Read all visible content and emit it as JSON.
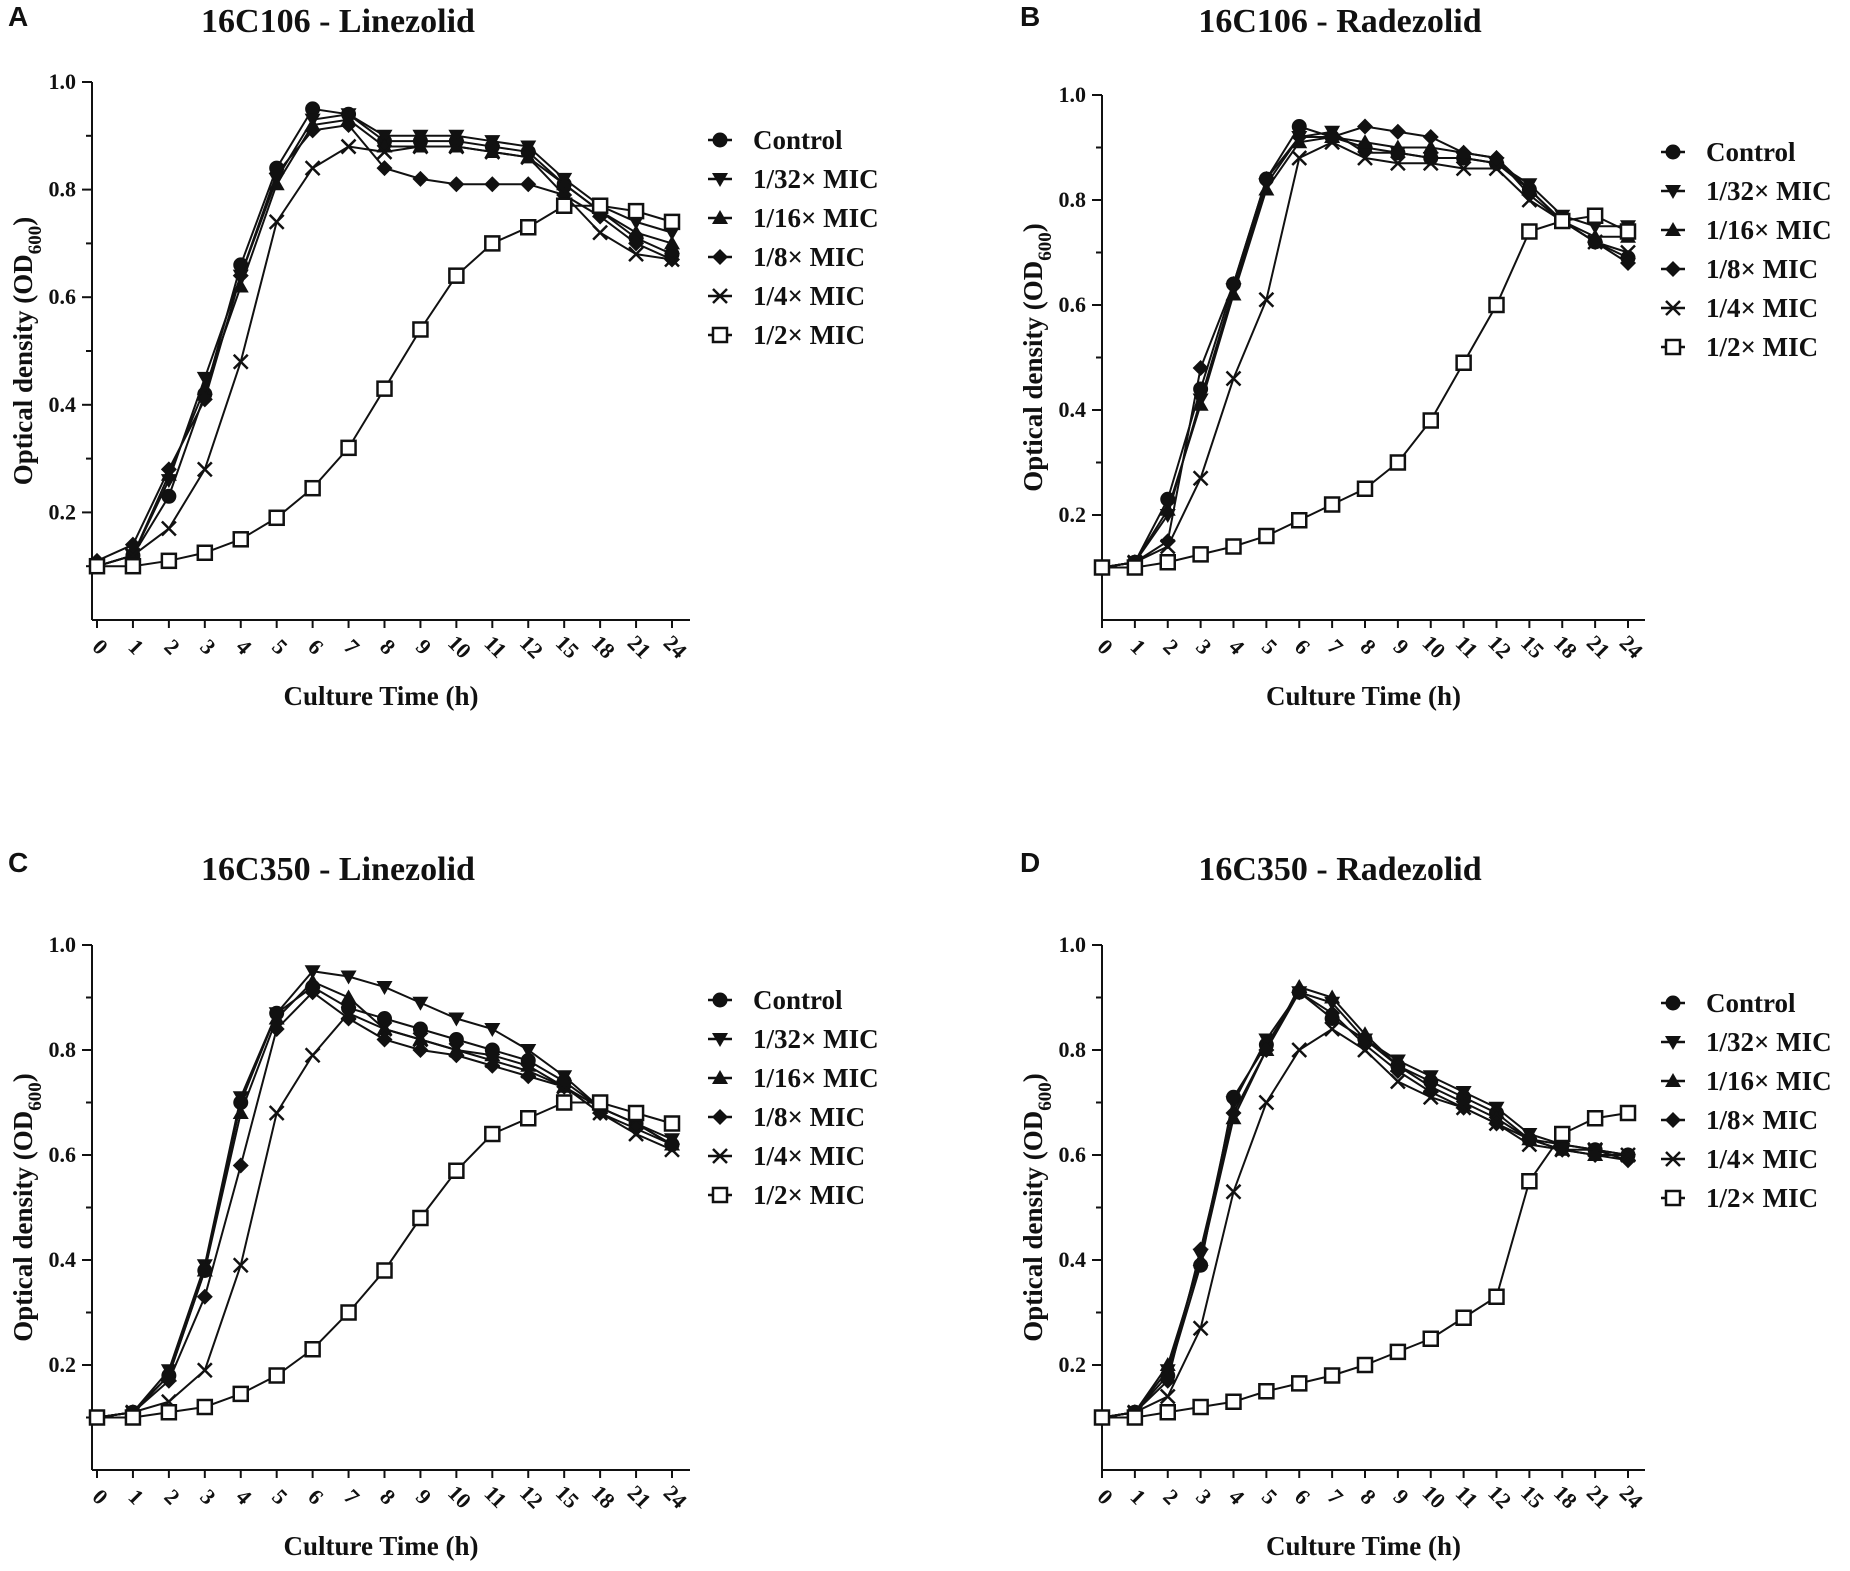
{
  "chart_data": [
    {
      "panel": "A",
      "type": "line",
      "title": "16C106 - Linezolid",
      "xlabel": "Culture Time (h)",
      "ylabel": "Optical density (OD",
      "ylabel_sub": "600",
      "ylabel_close": ")",
      "categories": [
        "0",
        "1",
        "2",
        "3",
        "4",
        "5",
        "6",
        "7",
        "8",
        "9",
        "10",
        "11",
        "12",
        "15",
        "18",
        "21",
        "24"
      ],
      "yticks": [
        "0.2",
        "0.4",
        "0.6",
        "0.8",
        "1.0"
      ],
      "ylim": [
        0,
        1.0
      ],
      "series": [
        {
          "name": "Control",
          "marker": "circle",
          "values": [
            0.1,
            0.12,
            0.23,
            0.42,
            0.66,
            0.84,
            0.95,
            0.94,
            0.89,
            0.89,
            0.89,
            0.88,
            0.87,
            0.81,
            0.76,
            0.71,
            0.68
          ]
        },
        {
          "name": "1/32× MIC",
          "marker": "triangle-down",
          "values": [
            0.1,
            0.12,
            0.26,
            0.45,
            0.64,
            0.82,
            0.93,
            0.94,
            0.9,
            0.9,
            0.9,
            0.89,
            0.88,
            0.82,
            0.77,
            0.74,
            0.72
          ]
        },
        {
          "name": "1/16× MIC",
          "marker": "triangle-up",
          "values": [
            0.1,
            0.12,
            0.27,
            0.43,
            0.62,
            0.81,
            0.92,
            0.93,
            0.88,
            0.88,
            0.88,
            0.87,
            0.86,
            0.81,
            0.76,
            0.72,
            0.7
          ]
        },
        {
          "name": "1/8× MIC",
          "marker": "diamond",
          "values": [
            0.11,
            0.14,
            0.28,
            0.41,
            0.64,
            0.83,
            0.91,
            0.92,
            0.84,
            0.82,
            0.81,
            0.81,
            0.81,
            0.79,
            0.75,
            0.7,
            0.67
          ]
        },
        {
          "name": "1/4× MIC",
          "marker": "x",
          "values": [
            0.1,
            0.12,
            0.17,
            0.28,
            0.48,
            0.74,
            0.84,
            0.88,
            0.87,
            0.88,
            0.88,
            0.87,
            0.86,
            0.79,
            0.72,
            0.68,
            0.67
          ]
        },
        {
          "name": "1/2× MIC",
          "marker": "square-open",
          "values": [
            0.1,
            0.1,
            0.11,
            0.125,
            0.15,
            0.19,
            0.245,
            0.32,
            0.43,
            0.54,
            0.64,
            0.7,
            0.73,
            0.77,
            0.77,
            0.76,
            0.74
          ]
        }
      ]
    },
    {
      "panel": "B",
      "type": "line",
      "title": "16C106 - Radezolid",
      "xlabel": "Culture Time (h)",
      "ylabel": "Optical density (OD",
      "ylabel_sub": "600",
      "ylabel_close": ")",
      "categories": [
        "0",
        "1",
        "2",
        "3",
        "4",
        "5",
        "6",
        "7",
        "8",
        "9",
        "10",
        "11",
        "12",
        "15",
        "18",
        "21",
        "24"
      ],
      "yticks": [
        "0.2",
        "0.4",
        "0.6",
        "0.8",
        "1.0"
      ],
      "ylim": [
        0,
        1.0
      ],
      "series": [
        {
          "name": "Control",
          "marker": "circle",
          "values": [
            0.1,
            0.11,
            0.23,
            0.44,
            0.64,
            0.84,
            0.94,
            0.92,
            0.9,
            0.89,
            0.88,
            0.88,
            0.87,
            0.82,
            0.76,
            0.72,
            0.69
          ]
        },
        {
          "name": "1/32× MIC",
          "marker": "triangle-down",
          "values": [
            0.1,
            0.11,
            0.2,
            0.42,
            0.63,
            0.83,
            0.92,
            0.93,
            0.89,
            0.89,
            0.88,
            0.88,
            0.87,
            0.83,
            0.77,
            0.75,
            0.75
          ]
        },
        {
          "name": "1/16× MIC",
          "marker": "triangle-up",
          "values": [
            0.1,
            0.11,
            0.21,
            0.41,
            0.62,
            0.82,
            0.91,
            0.92,
            0.91,
            0.9,
            0.9,
            0.89,
            0.88,
            0.82,
            0.76,
            0.73,
            0.73
          ]
        },
        {
          "name": "1/8× MIC",
          "marker": "diamond",
          "values": [
            0.1,
            0.11,
            0.15,
            0.48,
            0.64,
            0.84,
            0.92,
            0.92,
            0.94,
            0.93,
            0.92,
            0.89,
            0.88,
            0.81,
            0.76,
            0.72,
            0.68
          ]
        },
        {
          "name": "1/4× MIC",
          "marker": "x",
          "values": [
            0.1,
            0.11,
            0.14,
            0.27,
            0.46,
            0.61,
            0.88,
            0.91,
            0.88,
            0.87,
            0.87,
            0.86,
            0.86,
            0.8,
            0.76,
            0.72,
            0.7
          ]
        },
        {
          "name": "1/2× MIC",
          "marker": "square-open",
          "values": [
            0.1,
            0.1,
            0.11,
            0.125,
            0.14,
            0.16,
            0.19,
            0.22,
            0.25,
            0.3,
            0.38,
            0.49,
            0.6,
            0.74,
            0.76,
            0.77,
            0.74
          ]
        }
      ]
    },
    {
      "panel": "C",
      "type": "line",
      "title": "16C350 - Linezolid",
      "xlabel": "Culture Time (h)",
      "ylabel": "Optical density (OD",
      "ylabel_sub": "600",
      "ylabel_close": ")",
      "categories": [
        "0",
        "1",
        "2",
        "3",
        "4",
        "5",
        "6",
        "7",
        "8",
        "9",
        "10",
        "11",
        "12",
        "15",
        "18",
        "21",
        "24"
      ],
      "yticks": [
        "0.2",
        "0.4",
        "0.6",
        "0.8",
        "1.0"
      ],
      "ylim": [
        0,
        1.0
      ],
      "series": [
        {
          "name": "Control",
          "marker": "circle",
          "values": [
            0.1,
            0.11,
            0.18,
            0.38,
            0.7,
            0.87,
            0.92,
            0.88,
            0.86,
            0.84,
            0.82,
            0.8,
            0.78,
            0.74,
            0.69,
            0.66,
            0.62
          ]
        },
        {
          "name": "1/32× MIC",
          "marker": "triangle-down",
          "values": [
            0.1,
            0.11,
            0.19,
            0.39,
            0.71,
            0.87,
            0.95,
            0.94,
            0.92,
            0.89,
            0.86,
            0.84,
            0.8,
            0.75,
            0.69,
            0.66,
            0.63
          ]
        },
        {
          "name": "1/16× MIC",
          "marker": "triangle-up",
          "values": [
            0.1,
            0.11,
            0.18,
            0.38,
            0.68,
            0.86,
            0.93,
            0.9,
            0.84,
            0.82,
            0.8,
            0.79,
            0.77,
            0.73,
            0.69,
            0.66,
            0.62
          ]
        },
        {
          "name": "1/8× MIC",
          "marker": "diamond",
          "values": [
            0.1,
            0.11,
            0.17,
            0.33,
            0.58,
            0.84,
            0.91,
            0.86,
            0.82,
            0.8,
            0.79,
            0.77,
            0.75,
            0.73,
            0.68,
            0.65,
            0.62
          ]
        },
        {
          "name": "1/4× MIC",
          "marker": "x",
          "values": [
            0.1,
            0.11,
            0.13,
            0.19,
            0.39,
            0.68,
            0.79,
            0.87,
            0.84,
            0.82,
            0.8,
            0.78,
            0.76,
            0.73,
            0.68,
            0.64,
            0.61
          ]
        },
        {
          "name": "1/2× MIC",
          "marker": "square-open",
          "values": [
            0.1,
            0.1,
            0.11,
            0.12,
            0.145,
            0.18,
            0.23,
            0.3,
            0.38,
            0.48,
            0.57,
            0.64,
            0.67,
            0.7,
            0.7,
            0.68,
            0.66
          ]
        }
      ]
    },
    {
      "panel": "D",
      "type": "line",
      "title": "16C350 - Radezolid",
      "xlabel": "Culture Time (h)",
      "ylabel": "Optical density (OD",
      "ylabel_sub": "600",
      "ylabel_close": ")",
      "categories": [
        "0",
        "1",
        "2",
        "3",
        "4",
        "5",
        "6",
        "7",
        "8",
        "9",
        "10",
        "11",
        "12",
        "15",
        "18",
        "21",
        "24"
      ],
      "yticks": [
        "0.2",
        "0.4",
        "0.6",
        "0.8",
        "1.0"
      ],
      "ylim": [
        0,
        1.0
      ],
      "series": [
        {
          "name": "Control",
          "marker": "circle",
          "values": [
            0.1,
            0.11,
            0.18,
            0.39,
            0.71,
            0.81,
            0.91,
            0.86,
            0.82,
            0.77,
            0.74,
            0.71,
            0.68,
            0.63,
            0.62,
            0.61,
            0.6
          ]
        },
        {
          "name": "1/32× MIC",
          "marker": "triangle-down",
          "values": [
            0.1,
            0.11,
            0.19,
            0.41,
            0.7,
            0.82,
            0.91,
            0.89,
            0.82,
            0.78,
            0.75,
            0.72,
            0.69,
            0.64,
            0.62,
            0.61,
            0.59
          ]
        },
        {
          "name": "1/16× MIC",
          "marker": "triangle-up",
          "values": [
            0.1,
            0.11,
            0.2,
            0.4,
            0.67,
            0.8,
            0.92,
            0.9,
            0.83,
            0.77,
            0.73,
            0.7,
            0.67,
            0.63,
            0.61,
            0.6,
            0.6
          ]
        },
        {
          "name": "1/8× MIC",
          "marker": "diamond",
          "values": [
            0.1,
            0.11,
            0.17,
            0.42,
            0.68,
            0.8,
            0.91,
            0.87,
            0.81,
            0.76,
            0.72,
            0.69,
            0.66,
            0.63,
            0.61,
            0.6,
            0.59
          ]
        },
        {
          "name": "1/4× MIC",
          "marker": "x",
          "values": [
            0.1,
            0.11,
            0.14,
            0.27,
            0.53,
            0.7,
            0.8,
            0.84,
            0.8,
            0.74,
            0.71,
            0.69,
            0.66,
            0.62,
            0.61,
            0.61,
            0.6
          ]
        },
        {
          "name": "1/2× MIC",
          "marker": "square-open",
          "values": [
            0.1,
            0.1,
            0.11,
            0.12,
            0.13,
            0.15,
            0.165,
            0.18,
            0.2,
            0.225,
            0.25,
            0.29,
            0.33,
            0.55,
            0.64,
            0.67,
            0.68
          ]
        }
      ]
    }
  ]
}
